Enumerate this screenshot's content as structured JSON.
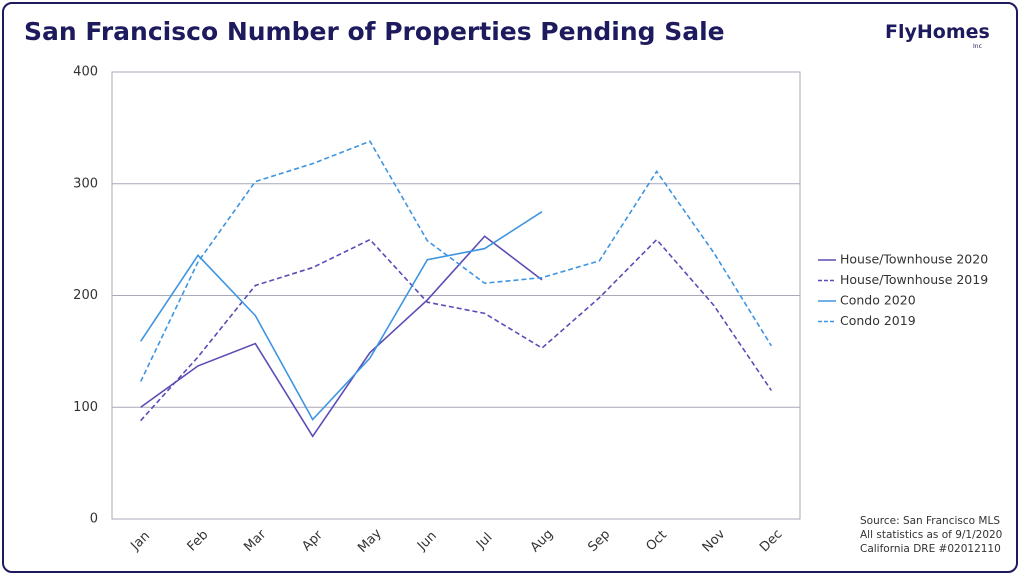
{
  "chart_data": {
    "type": "line",
    "title": "San Francisco Number of Properties Pending Sale",
    "brand": "FlyHomes",
    "brand_suffix": "Inc",
    "categories": [
      "Jan",
      "Feb",
      "Mar",
      "Apr",
      "May",
      "Jun",
      "Jul",
      "Aug",
      "Sep",
      "Oct",
      "Nov",
      "Dec"
    ],
    "series": [
      {
        "name": "House/Townhouse 2020",
        "color": "#5a4db5",
        "dashed": false,
        "values": [
          100,
          137,
          157,
          74,
          149,
          196,
          253,
          214,
          null,
          null,
          null,
          null
        ]
      },
      {
        "name": "House/Townhouse 2019",
        "color": "#5a4db5",
        "dashed": true,
        "values": [
          88,
          145,
          209,
          225,
          250,
          194,
          184,
          153,
          198,
          250,
          191,
          115
        ]
      },
      {
        "name": "Condo 2020",
        "color": "#3f95e2",
        "dashed": false,
        "values": [
          159,
          236,
          182,
          89,
          144,
          232,
          242,
          275,
          null,
          null,
          null,
          null
        ]
      },
      {
        "name": "Condo 2019",
        "color": "#3f95e2",
        "dashed": true,
        "values": [
          123,
          230,
          302,
          318,
          338,
          249,
          211,
          216,
          231,
          311,
          238,
          155
        ]
      }
    ],
    "ylim": [
      0,
      400
    ],
    "yticks": [
      0,
      100,
      200,
      300,
      400
    ],
    "grid": true,
    "legend": "right",
    "notes": [
      "Source: San Francisco MLS",
      "All statistics as of 9/1/2020",
      "California DRE #02012110"
    ]
  }
}
